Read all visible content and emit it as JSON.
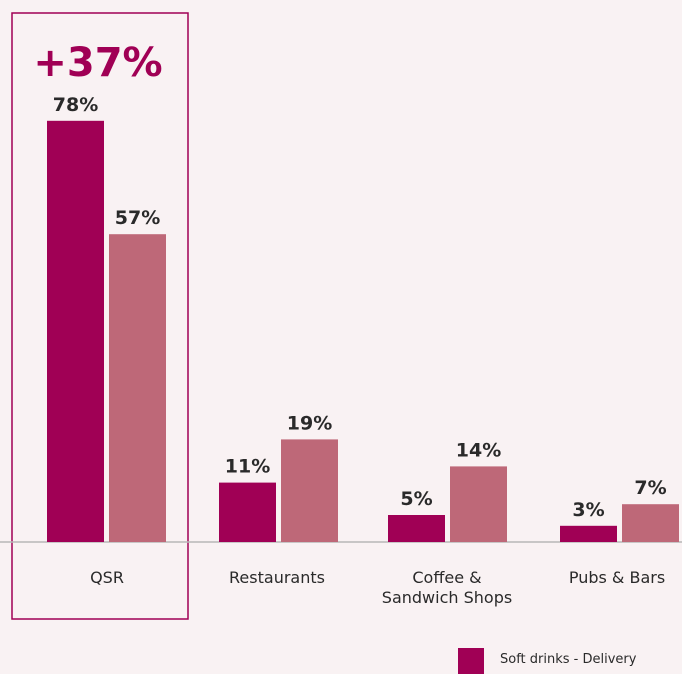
{
  "chart_data": {
    "type": "bar",
    "categories": [
      [
        "QSR"
      ],
      [
        "Restaurants"
      ],
      [
        "Coffee &",
        "Sandwich Shops"
      ],
      [
        "Pubs & Bars"
      ]
    ],
    "series": [
      {
        "name": "Soft drinks - Delivery",
        "values": [
          78,
          11,
          5,
          3
        ],
        "labels": [
          "78%",
          "11%",
          "5%",
          "3%"
        ],
        "color": "#a00055"
      },
      {
        "name": "",
        "values": [
          57,
          19,
          14,
          7
        ],
        "labels": [
          "57%",
          "19%",
          "14%",
          "7%"
        ],
        "color": "#be6878"
      }
    ],
    "highlight": {
      "category_index": 0,
      "text": "+37%",
      "border_color": "#a00055"
    },
    "ylim": [
      0,
      100
    ],
    "axis_color": "#b8b8b8"
  }
}
